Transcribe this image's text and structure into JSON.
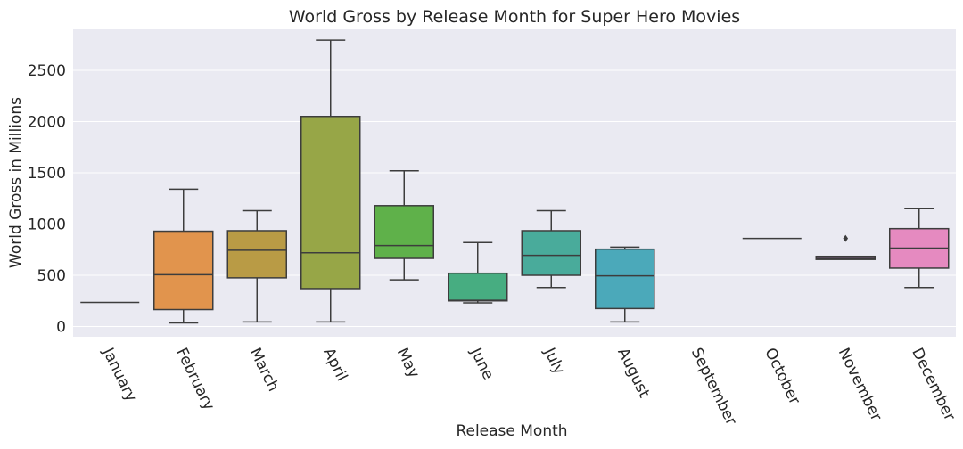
{
  "chart_data": {
    "type": "box",
    "title": "World Gross by Release Month for Super Hero Movies",
    "xlabel": "Release Month",
    "ylabel": "World Gross in Millions",
    "ylim": [
      -100,
      2900
    ],
    "yticks": [
      0,
      500,
      1000,
      1500,
      2000,
      2500
    ],
    "grid": true,
    "categories": [
      "January",
      "February",
      "March",
      "April",
      "May",
      "June",
      "July",
      "August",
      "September",
      "October",
      "November",
      "December"
    ],
    "boxes": [
      {
        "category": "January",
        "min": 235,
        "q1": 235,
        "median": 235,
        "q3": 235,
        "max": 235,
        "outliers": [],
        "color": "#3274a1"
      },
      {
        "category": "February",
        "min": 35,
        "q1": 165,
        "median": 505,
        "q3": 930,
        "max": 1340,
        "outliers": [],
        "color": "#e1944d"
      },
      {
        "category": "March",
        "min": 45,
        "q1": 475,
        "median": 745,
        "q3": 935,
        "max": 1130,
        "outliers": [],
        "color": "#b99b45"
      },
      {
        "category": "April",
        "min": 45,
        "q1": 370,
        "median": 720,
        "q3": 2050,
        "max": 2795,
        "outliers": [],
        "color": "#97a647"
      },
      {
        "category": "May",
        "min": 455,
        "q1": 665,
        "median": 790,
        "q3": 1180,
        "max": 1520,
        "outliers": [],
        "color": "#5fb14a"
      },
      {
        "category": "June",
        "min": 230,
        "q1": 250,
        "median": 255,
        "q3": 520,
        "max": 820,
        "outliers": [],
        "color": "#47ad81"
      },
      {
        "category": "July",
        "min": 380,
        "q1": 500,
        "median": 695,
        "q3": 935,
        "max": 1130,
        "outliers": [],
        "color": "#49ab9b"
      },
      {
        "category": "August",
        "min": 45,
        "q1": 175,
        "median": 495,
        "q3": 755,
        "max": 775,
        "outliers": [],
        "color": "#4ba9ba"
      },
      {
        "category": "September",
        "min": null,
        "q1": null,
        "median": null,
        "q3": null,
        "max": null,
        "outliers": [],
        "color": "#6f8ec3"
      },
      {
        "category": "October",
        "min": 860,
        "q1": 860,
        "median": 860,
        "q3": 860,
        "max": 860,
        "outliers": [],
        "color": "#9d78b9"
      },
      {
        "category": "November",
        "min": 655,
        "q1": 655,
        "median": 665,
        "q3": 685,
        "max": 685,
        "outliers": [
          860
        ],
        "color": "#a470ac"
      },
      {
        "category": "December",
        "min": 380,
        "q1": 570,
        "median": 765,
        "q3": 955,
        "max": 1150,
        "outliers": [],
        "color": "#e58ac0"
      }
    ],
    "style": {
      "plot_background": "#eaeaf2",
      "grid_color": "#ffffff",
      "line_color": "#3d3d3d",
      "text_color": "#262626"
    }
  }
}
